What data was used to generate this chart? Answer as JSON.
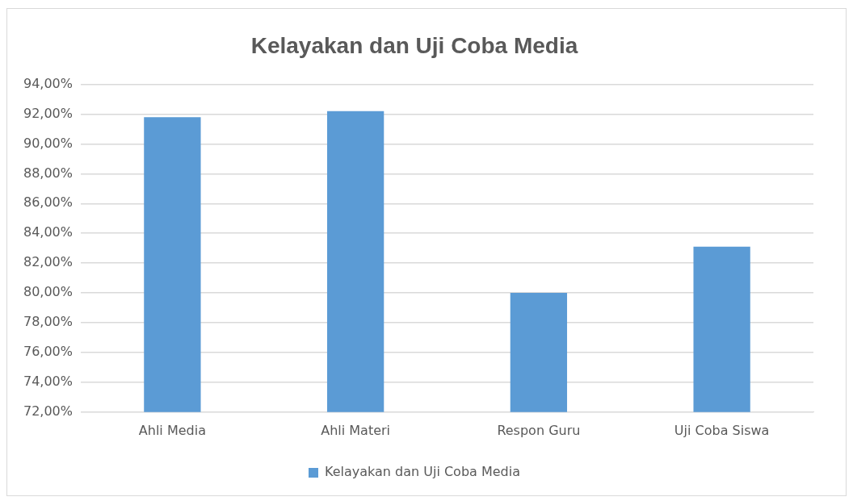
{
  "chart_data": {
    "type": "bar",
    "title": "Kelayakan dan Uji Coba Media",
    "categories": [
      "Ahli Media",
      "Ahli Materi",
      "Respon Guru",
      "Uji Coba Siswa"
    ],
    "series": [
      {
        "name": "Kelayakan dan Uji Coba Media",
        "color": "#5b9bd5",
        "values": [
          91.8,
          92.2,
          80.0,
          83.1
        ]
      }
    ],
    "ylim": [
      72,
      94
    ],
    "yticks": [
      {
        "value": 72,
        "label": "72,00%"
      },
      {
        "value": 74,
        "label": "74,00%"
      },
      {
        "value": 76,
        "label": "76,00%"
      },
      {
        "value": 78,
        "label": "78,00%"
      },
      {
        "value": 80,
        "label": "80,00%"
      },
      {
        "value": 82,
        "label": "82,00%"
      },
      {
        "value": 84,
        "label": "84,00%"
      },
      {
        "value": 86,
        "label": "86,00%"
      },
      {
        "value": 88,
        "label": "88,00%"
      },
      {
        "value": 90,
        "label": "90,00%"
      },
      {
        "value": 92,
        "label": "92,00%"
      },
      {
        "value": 94,
        "label": "94,00%"
      }
    ],
    "grid": "y",
    "legend": "bottom"
  }
}
